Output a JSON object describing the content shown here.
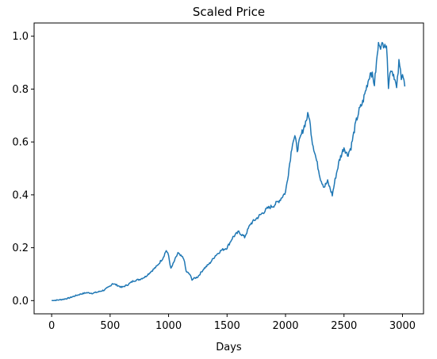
{
  "chart_data": {
    "type": "line",
    "title": "Scaled Price",
    "xlabel": "Days",
    "ylabel": "",
    "xlim": [
      -150,
      3180
    ],
    "ylim": [
      -0.05,
      1.05
    ],
    "xticks": [
      0,
      500,
      1000,
      1500,
      2000,
      2500,
      3000
    ],
    "yticks": [
      0.0,
      0.2,
      0.4,
      0.6,
      0.8,
      1.0
    ],
    "xtick_labels": [
      "0",
      "500",
      "1000",
      "1500",
      "2000",
      "2500",
      "3000"
    ],
    "ytick_labels": [
      "0.0",
      "0.2",
      "0.4",
      "0.6",
      "0.8",
      "1.0"
    ],
    "grid": false,
    "line_color": "#1f77b4",
    "series": [
      {
        "x": [
          0,
          50,
          100,
          150,
          200,
          250,
          300,
          350,
          400,
          450,
          500,
          520,
          550,
          600,
          650,
          700,
          750,
          800,
          850,
          900,
          950,
          980,
          1000,
          1020,
          1050,
          1080,
          1100,
          1130,
          1150,
          1180,
          1200,
          1250,
          1300,
          1350,
          1400,
          1450,
          1500,
          1550,
          1600,
          1650,
          1700,
          1750,
          1800,
          1850,
          1900,
          1950,
          2000,
          2030,
          2060,
          2080,
          2100,
          2130,
          2160,
          2190,
          2200,
          2230,
          2260,
          2300,
          2330,
          2360,
          2400,
          2430,
          2460,
          2500,
          2530,
          2560,
          2600,
          2630,
          2660,
          2700,
          2730,
          2760,
          2790,
          2800,
          2820,
          2850,
          2870,
          2880,
          2900,
          2930,
          2950,
          2970,
          2990,
          3000,
          3020
        ],
        "y": [
          0.0,
          0.002,
          0.005,
          0.01,
          0.018,
          0.025,
          0.03,
          0.028,
          0.033,
          0.04,
          0.055,
          0.065,
          0.06,
          0.05,
          0.06,
          0.075,
          0.08,
          0.09,
          0.11,
          0.13,
          0.16,
          0.19,
          0.17,
          0.12,
          0.15,
          0.18,
          0.17,
          0.16,
          0.11,
          0.1,
          0.08,
          0.09,
          0.12,
          0.14,
          0.17,
          0.19,
          0.2,
          0.24,
          0.26,
          0.24,
          0.29,
          0.31,
          0.33,
          0.35,
          0.36,
          0.38,
          0.41,
          0.5,
          0.6,
          0.62,
          0.57,
          0.62,
          0.66,
          0.7,
          0.7,
          0.6,
          0.54,
          0.46,
          0.43,
          0.45,
          0.4,
          0.47,
          0.53,
          0.58,
          0.55,
          0.58,
          0.67,
          0.72,
          0.75,
          0.82,
          0.87,
          0.82,
          0.95,
          0.98,
          0.96,
          0.98,
          0.93,
          0.81,
          0.88,
          0.85,
          0.8,
          0.9,
          0.85,
          0.86,
          0.81
        ]
      }
    ]
  }
}
